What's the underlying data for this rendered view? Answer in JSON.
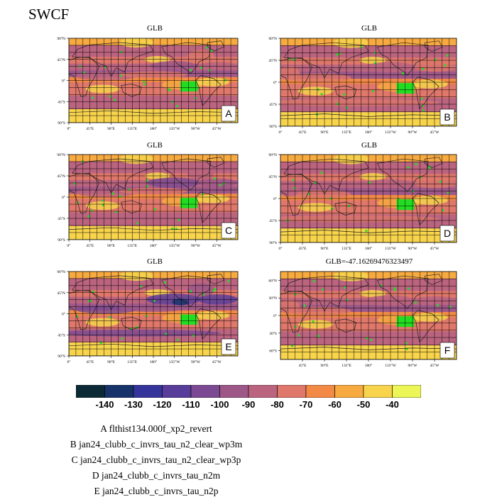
{
  "title": "SWCF",
  "colors": {
    "ocean_base": "#e8f25a",
    "land_green": "#22dd22",
    "grid": "#000000",
    "coast": "#222222"
  },
  "chart_data": [
    {
      "type": "heatmap",
      "panel_title": "GLB",
      "panel_letter": "A",
      "lat_ticks": [
        "90°N",
        "45°N",
        "0°",
        "45°S",
        "90°S"
      ],
      "lon_ticks": [
        "0°",
        "45°E",
        "90°E",
        "135°E",
        "180°",
        "135°W",
        "90°W",
        "45°W"
      ]
    },
    {
      "type": "heatmap",
      "panel_title": "GLB",
      "panel_letter": "B",
      "lat_ticks": [
        "90°N",
        "45°N",
        "0°",
        "45°S",
        "90°S"
      ],
      "lon_ticks": [
        "0°",
        "45°E",
        "90°E",
        "135°E",
        "180°",
        "135°W",
        "90°W",
        "45°W"
      ]
    },
    {
      "type": "heatmap",
      "panel_title": "GLB",
      "panel_letter": "C",
      "lat_ticks": [
        "90°N",
        "45°N",
        "0°",
        "45°S",
        "90°S"
      ],
      "lon_ticks": [
        "0°",
        "45°E",
        "90°E",
        "135°E",
        "180°",
        "135°W",
        "90°W",
        "45°W"
      ]
    },
    {
      "type": "heatmap",
      "panel_title": "GLB",
      "panel_letter": "D",
      "lat_ticks": [
        "90°N",
        "45°N",
        "0°",
        "45°S",
        "90°S"
      ],
      "lon_ticks": [
        "0°",
        "45°E",
        "90°E",
        "135°E",
        "180°",
        "135°W",
        "90°W",
        "45°W"
      ]
    },
    {
      "type": "heatmap",
      "panel_title": "GLB",
      "panel_letter": "E",
      "lat_ticks": [
        "90°N",
        "45°N",
        "0°",
        "45°S",
        "90°S"
      ],
      "lon_ticks": [
        "0°",
        "45°E",
        "90°E",
        "135°E",
        "180°",
        "135°W",
        "90°W",
        "45°W"
      ]
    },
    {
      "type": "heatmap",
      "panel_title": "GLB=-47.16269476323497",
      "panel_letter": "F",
      "lat_ticks": [
        "60°N",
        "30°N",
        "0°",
        "30°S",
        "60°S"
      ],
      "lon_ticks": [
        "45°E",
        "90°E",
        "135°E",
        "180°",
        "135°W",
        "90°W",
        "45°W"
      ]
    }
  ],
  "colorbar": {
    "labels": [
      "-140",
      "-130",
      "-120",
      "-110",
      "-100",
      "-90",
      "-80",
      "-70",
      "-60",
      "-50",
      "-40"
    ],
    "colors": [
      "#0b2a36",
      "#17336a",
      "#35349a",
      "#583d9a",
      "#7c4a92",
      "#9e5888",
      "#bb6480",
      "#df776a",
      "#f28a45",
      "#f7aa40",
      "#f7d44c",
      "#ecf757"
    ]
  },
  "legend": [
    "A  flthist134.000f_xp2_revert",
    "B  jan24_clubb_c_invrs_tau_n2_clear_wp3m",
    "C  jan24_clubb_c_invrs_tau_n2_clear_wp3p",
    "D  jan24_clubb_c_invrs_tau_n2m",
    "E  jan24_clubb_c_invrs_tau_n2p"
  ]
}
